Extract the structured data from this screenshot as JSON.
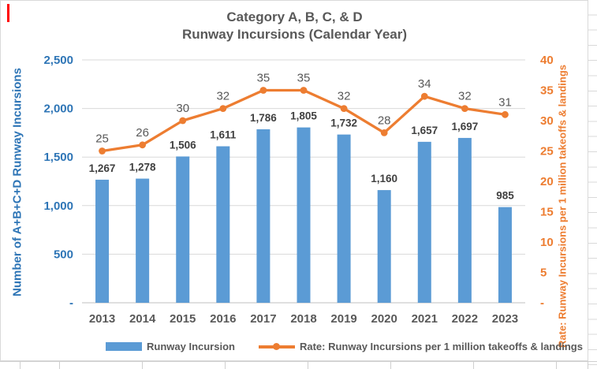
{
  "chart_data": {
    "type": "combo",
    "title_lines": [
      "Category A, B, C, & D",
      "Runway Incursions (Calendar Year)"
    ],
    "categories": [
      "2013",
      "2014",
      "2015",
      "2016",
      "2017",
      "2018",
      "2019",
      "2020",
      "2021",
      "2022",
      "2023"
    ],
    "series": [
      {
        "name": "Runway Incursion",
        "type": "bar",
        "axis": "left",
        "color": "#5B9BD5",
        "values": [
          1267,
          1278,
          1506,
          1611,
          1786,
          1805,
          1732,
          1160,
          1657,
          1697,
          985
        ],
        "labels": [
          "1,267",
          "1,278",
          "1,506",
          "1,611",
          "1,786",
          "1,805",
          "1,732",
          "1,160",
          "1,657",
          "1,697",
          "985"
        ]
      },
      {
        "name": "Rate: Runway Incursions per 1 million takeoffs & landings",
        "type": "line",
        "axis": "right",
        "color": "#ED7D31",
        "values": [
          25,
          26,
          30,
          32,
          35,
          35,
          32,
          28,
          34,
          32,
          31
        ],
        "labels": [
          "25",
          "26",
          "30",
          "32",
          "35",
          "35",
          "32",
          "28",
          "34",
          "32",
          "31"
        ]
      }
    ],
    "left_axis": {
      "title": "Number of A+B+C+D Runway Incursions",
      "color": "#2E75B6",
      "min": 0,
      "max": 2500,
      "ticks": [
        {
          "v": 2500,
          "label": "2,500"
        },
        {
          "v": 2000,
          "label": "2,000"
        },
        {
          "v": 1500,
          "label": "1,500"
        },
        {
          "v": 1000,
          "label": "1,000"
        },
        {
          "v": 500,
          "label": "500"
        },
        {
          "v": 0,
          "label": "-"
        }
      ]
    },
    "right_axis": {
      "title": "Rate: Runway Incursions per 1 million takeoffs & landings",
      "color": "#ED7D31",
      "min": 0,
      "max": 40,
      "ticks": [
        {
          "v": 40,
          "label": "40"
        },
        {
          "v": 35,
          "label": "35"
        },
        {
          "v": 30,
          "label": "30"
        },
        {
          "v": 25,
          "label": "25"
        },
        {
          "v": 20,
          "label": "20"
        },
        {
          "v": 15,
          "label": "15"
        },
        {
          "v": 10,
          "label": "10"
        },
        {
          "v": 5,
          "label": "5"
        },
        {
          "v": 0,
          "label": "-"
        }
      ]
    },
    "grid": "horizontal",
    "legend_position": "bottom",
    "label_colors": {
      "bar_labels": "#404040",
      "rate_labels": "#595959",
      "category_labels": "#595959",
      "title": "#595959"
    },
    "gridline_color": "#D9D9D9"
  }
}
